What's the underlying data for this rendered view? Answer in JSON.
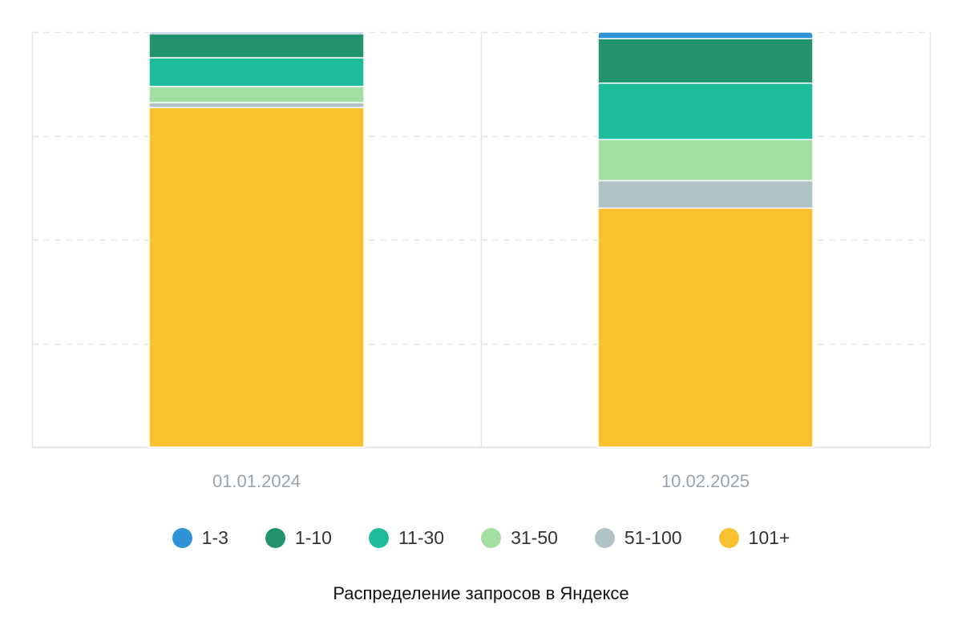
{
  "chart_data": {
    "type": "bar",
    "stacked": true,
    "title": "Распределение запросов в Яндексе",
    "xlabel": "",
    "ylabel": "",
    "ylim": [
      0,
      100
    ],
    "grid": true,
    "legend_position": "bottom",
    "categories": [
      "01.01.2024",
      "10.02.2025"
    ],
    "series": [
      {
        "name": "101+",
        "color": "#f9c02f",
        "values": [
          81.8,
          57.6
        ]
      },
      {
        "name": "51-100",
        "color": "#b0c4c8",
        "values": [
          1.2,
          6.6
        ]
      },
      {
        "name": "31-50",
        "color": "#a3df9e",
        "values": [
          3.9,
          9.9
        ]
      },
      {
        "name": "11-30",
        "color": "#1dbd9c",
        "values": [
          6.9,
          13.6
        ]
      },
      {
        "name": "1-10",
        "color": "#21946e",
        "values": [
          5.8,
          10.7
        ]
      },
      {
        "name": "1-3",
        "color": "#2f93d8",
        "values": [
          0.4,
          1.6
        ]
      }
    ]
  },
  "legend": {
    "items": [
      {
        "label": "1-3",
        "color": "#2f93d8"
      },
      {
        "label": "1-10",
        "color": "#21946e"
      },
      {
        "label": "11-30",
        "color": "#1dbd9c"
      },
      {
        "label": "31-50",
        "color": "#a3df9e"
      },
      {
        "label": "51-100",
        "color": "#b0c4c8"
      },
      {
        "label": "101+",
        "color": "#f9c02f"
      }
    ]
  }
}
